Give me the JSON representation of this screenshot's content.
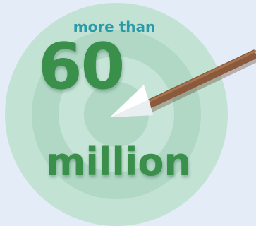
{
  "stat": {
    "prefix": "more than",
    "number": "60",
    "unit": "million"
  },
  "graphic": {
    "icon": "target-with-arrow-icon",
    "ring_colors": [
      "#c2e3d4",
      "#b0d8c5",
      "#c6e5d8",
      "#b0d8c5"
    ],
    "arrow_shaft_color": "#8b5a3c",
    "arrow_head_color": "#ffffff",
    "text_color": "#3a8f4a",
    "accent_color": "#2a9aa8"
  }
}
